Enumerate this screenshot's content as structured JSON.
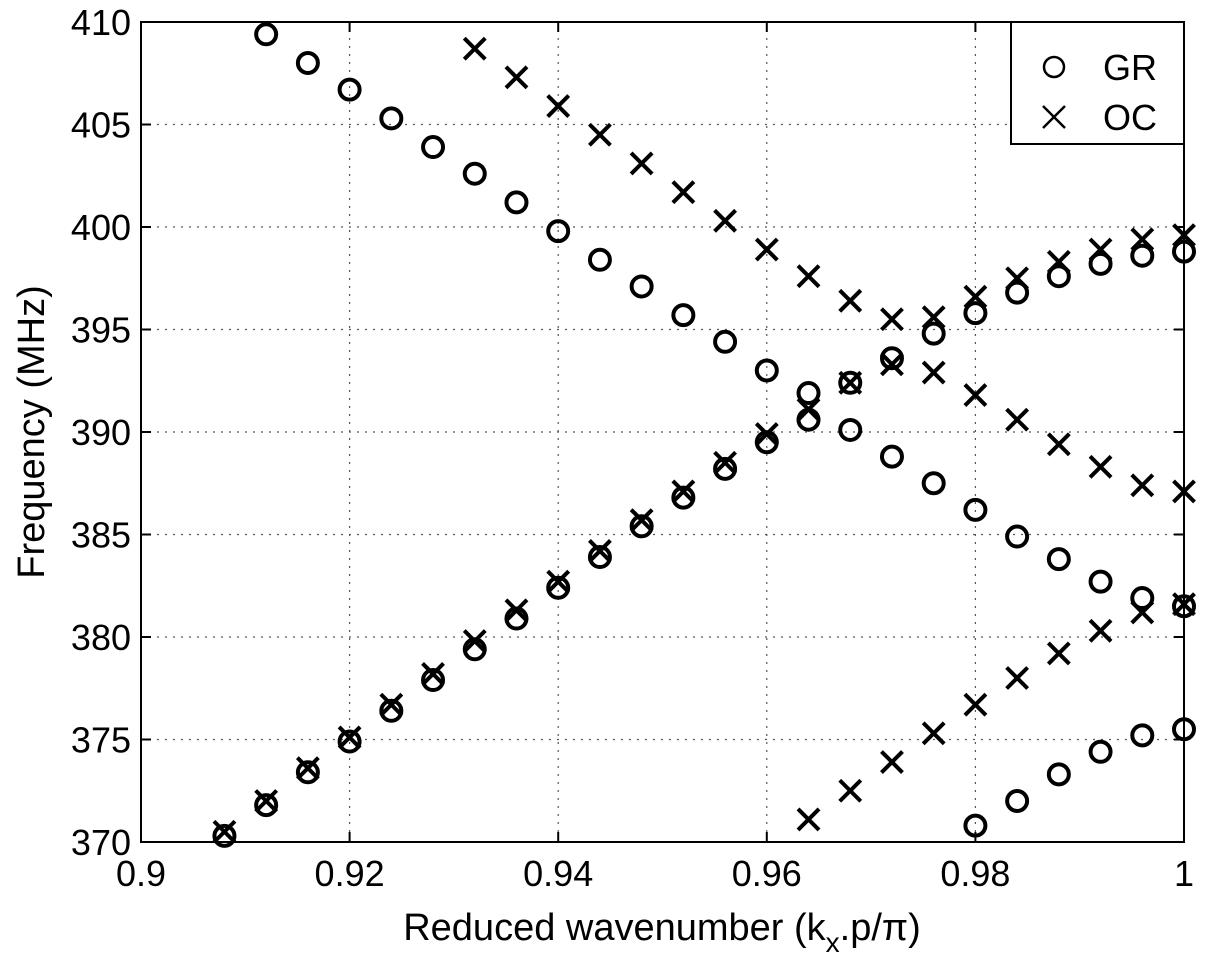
{
  "chart_data": {
    "type": "scatter",
    "xlabel": "Reduced wavenumber (k",
    "xlabel_sub": "x",
    "xlabel_tail": ".p/π)",
    "ylabel": "Frequency (MHz)",
    "xlim": [
      0.9,
      1.0
    ],
    "ylim": [
      370,
      410
    ],
    "xticks": [
      "0.9",
      "0.92",
      "0.94",
      "0.96",
      "0.98",
      "1"
    ],
    "yticks": [
      "370",
      "375",
      "380",
      "385",
      "390",
      "395",
      "400",
      "405",
      "410"
    ],
    "xtick_values": [
      0.9,
      0.92,
      0.94,
      0.96,
      0.98,
      1.0
    ],
    "ytick_values": [
      370,
      375,
      380,
      385,
      390,
      395,
      400,
      405,
      410
    ],
    "grid": true,
    "legend_position": "top-right",
    "series": [
      {
        "name": "GR",
        "marker": "circle",
        "points": [
          [
            0.908,
            370.3
          ],
          [
            0.912,
            371.8
          ],
          [
            0.916,
            373.4
          ],
          [
            0.92,
            374.9
          ],
          [
            0.924,
            376.4
          ],
          [
            0.928,
            377.9
          ],
          [
            0.932,
            379.4
          ],
          [
            0.936,
            380.9
          ],
          [
            0.94,
            382.4
          ],
          [
            0.944,
            383.9
          ],
          [
            0.948,
            385.4
          ],
          [
            0.952,
            386.8
          ],
          [
            0.956,
            388.2
          ],
          [
            0.96,
            389.5
          ],
          [
            0.964,
            390.6
          ],
          [
            0.968,
            390.1
          ],
          [
            0.972,
            388.8
          ],
          [
            0.976,
            387.5
          ],
          [
            0.98,
            386.2
          ],
          [
            0.984,
            384.9
          ],
          [
            0.988,
            383.8
          ],
          [
            0.992,
            382.7
          ],
          [
            0.996,
            381.9
          ],
          [
            1.0,
            381.5
          ],
          [
            0.912,
            409.4
          ],
          [
            0.916,
            408.0
          ],
          [
            0.92,
            406.7
          ],
          [
            0.924,
            405.3
          ],
          [
            0.928,
            403.9
          ],
          [
            0.932,
            402.6
          ],
          [
            0.936,
            401.2
          ],
          [
            0.94,
            399.8
          ],
          [
            0.944,
            398.4
          ],
          [
            0.948,
            397.1
          ],
          [
            0.952,
            395.7
          ],
          [
            0.956,
            394.4
          ],
          [
            0.96,
            393.0
          ],
          [
            0.964,
            391.9
          ],
          [
            0.968,
            392.4
          ],
          [
            0.972,
            393.6
          ],
          [
            0.976,
            394.8
          ],
          [
            0.98,
            395.8
          ],
          [
            0.984,
            396.8
          ],
          [
            0.988,
            397.6
          ],
          [
            0.992,
            398.2
          ],
          [
            0.996,
            398.6
          ],
          [
            1.0,
            398.8
          ],
          [
            0.98,
            370.8
          ],
          [
            0.984,
            372.0
          ],
          [
            0.988,
            373.3
          ],
          [
            0.992,
            374.4
          ],
          [
            0.996,
            375.2
          ],
          [
            1.0,
            375.5
          ]
        ]
      },
      {
        "name": "OC",
        "marker": "cross",
        "points": [
          [
            0.908,
            370.5
          ],
          [
            0.912,
            372.0
          ],
          [
            0.916,
            373.6
          ],
          [
            0.92,
            375.1
          ],
          [
            0.924,
            376.7
          ],
          [
            0.928,
            378.2
          ],
          [
            0.932,
            379.8
          ],
          [
            0.936,
            381.3
          ],
          [
            0.94,
            382.7
          ],
          [
            0.944,
            384.2
          ],
          [
            0.948,
            385.7
          ],
          [
            0.952,
            387.1
          ],
          [
            0.956,
            388.5
          ],
          [
            0.96,
            389.9
          ],
          [
            0.964,
            391.1
          ],
          [
            0.968,
            392.4
          ],
          [
            0.972,
            393.3
          ],
          [
            0.976,
            392.9
          ],
          [
            0.98,
            391.8
          ],
          [
            0.984,
            390.6
          ],
          [
            0.988,
            389.4
          ],
          [
            0.992,
            388.3
          ],
          [
            0.996,
            387.4
          ],
          [
            1.0,
            387.1
          ],
          [
            0.932,
            408.7
          ],
          [
            0.936,
            407.3
          ],
          [
            0.94,
            405.9
          ],
          [
            0.944,
            404.5
          ],
          [
            0.948,
            403.1
          ],
          [
            0.952,
            401.7
          ],
          [
            0.956,
            400.3
          ],
          [
            0.96,
            398.9
          ],
          [
            0.964,
            397.6
          ],
          [
            0.968,
            396.4
          ],
          [
            0.972,
            395.5
          ],
          [
            0.976,
            395.6
          ],
          [
            0.98,
            396.6
          ],
          [
            0.984,
            397.5
          ],
          [
            0.988,
            398.3
          ],
          [
            0.992,
            398.9
          ],
          [
            0.996,
            399.4
          ],
          [
            1.0,
            399.6
          ],
          [
            0.964,
            371.1
          ],
          [
            0.968,
            372.5
          ],
          [
            0.972,
            373.9
          ],
          [
            0.976,
            375.3
          ],
          [
            0.98,
            376.7
          ],
          [
            0.984,
            378.0
          ],
          [
            0.988,
            379.2
          ],
          [
            0.992,
            380.3
          ],
          [
            0.996,
            381.2
          ],
          [
            1.0,
            381.6
          ]
        ]
      }
    ]
  }
}
